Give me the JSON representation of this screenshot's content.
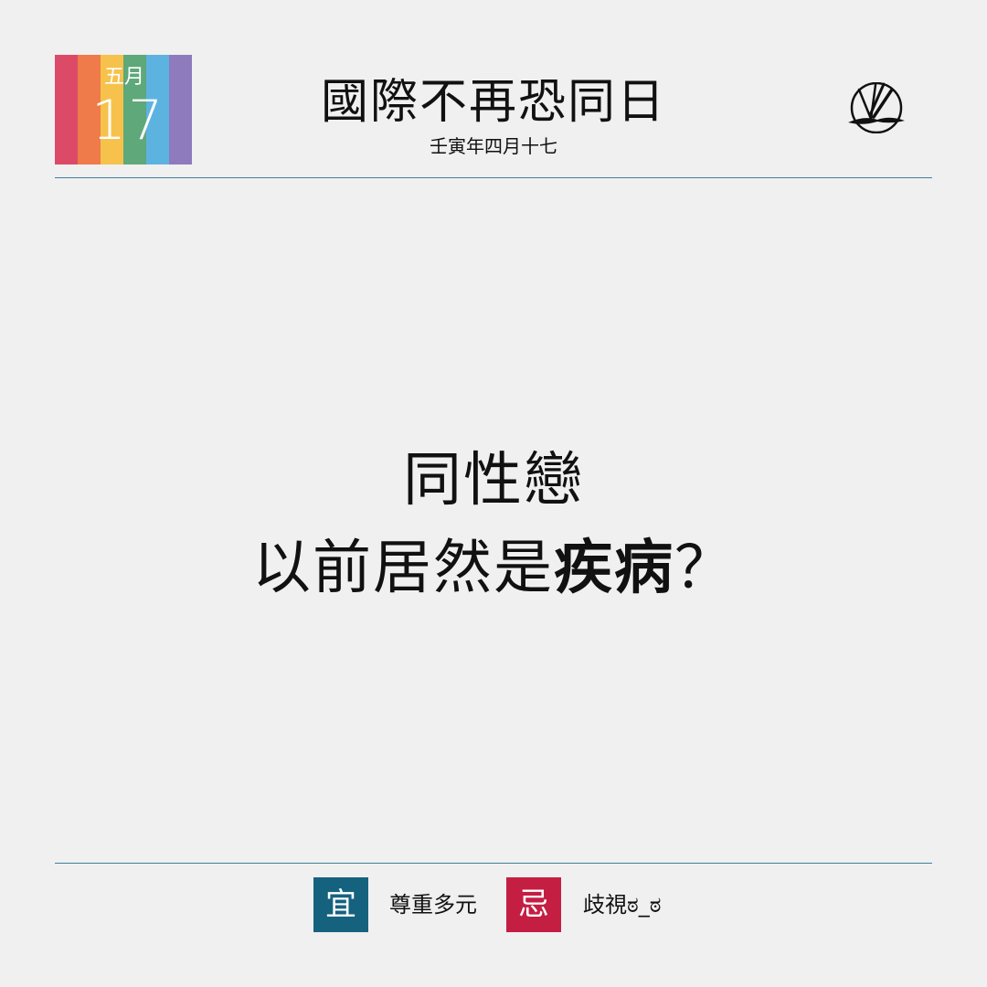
{
  "colors": {
    "stripes": [
      "#dc4a68",
      "#ef7a4a",
      "#f6c24b",
      "#5ea87a",
      "#5db3e0",
      "#8e7bbd"
    ],
    "divider": "#3f7f9a",
    "yi": "#15627f",
    "ji": "#c41e43",
    "background": "#f0f0f0"
  },
  "badge": {
    "month": "五月",
    "day": "17"
  },
  "header": {
    "title": "國際不再恐同日",
    "subtitle": "壬寅年四月十七",
    "logo_icon": "brush-circle-logo-icon"
  },
  "headline": {
    "line1": "同性戀",
    "line2_prefix": "以前居然是",
    "line2_emphasis": "疾病",
    "line2_suffix": "？"
  },
  "footer": {
    "yi_label": "宜",
    "yi_text": "尊重多元",
    "ji_label": "忌",
    "ji_text": "歧視ಠ_ಠ"
  }
}
